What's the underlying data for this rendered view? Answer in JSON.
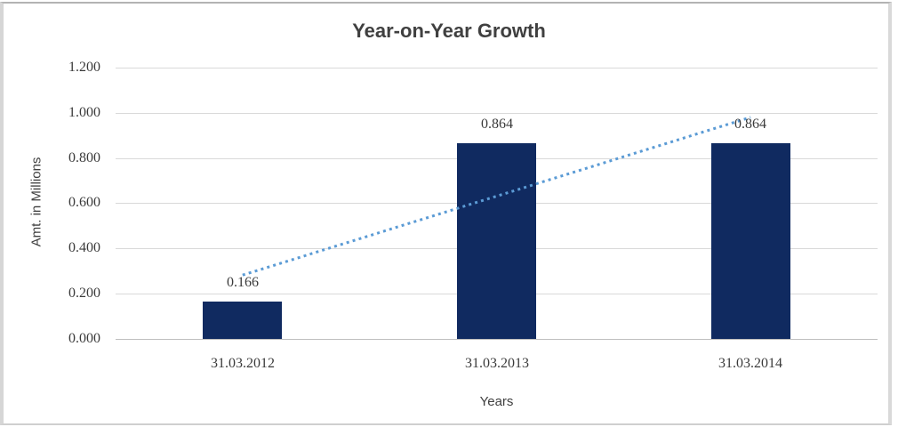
{
  "chart_data": {
    "type": "bar",
    "title": "Year-on-Year Growth",
    "ylabel": "Amt. in Millions",
    "xlabel": "Years",
    "categories": [
      "31.03.2012",
      "31.03.2013",
      "31.03.2014"
    ],
    "values": [
      0.166,
      0.864,
      0.864
    ],
    "value_labels": [
      "0.166",
      "0.864",
      "0.864"
    ],
    "ylim": [
      0,
      1.2
    ],
    "ytick_interval": 0.2,
    "ytick_labels": [
      "0.000",
      "0.200",
      "0.400",
      "0.600",
      "0.800",
      "1.000",
      "1.200"
    ],
    "grid": true,
    "legend": "none",
    "trendline": {
      "style": "dotted",
      "color": "#5b9bd5"
    },
    "colors": {
      "bar": "#102a60",
      "gridline": "#d9d9d9",
      "axis_line": "#bfbfbf",
      "tick_text": "#3a3a3a",
      "title_text": "#404040",
      "frame_border": "#d6d6d6",
      "background": "#ffffff"
    }
  }
}
